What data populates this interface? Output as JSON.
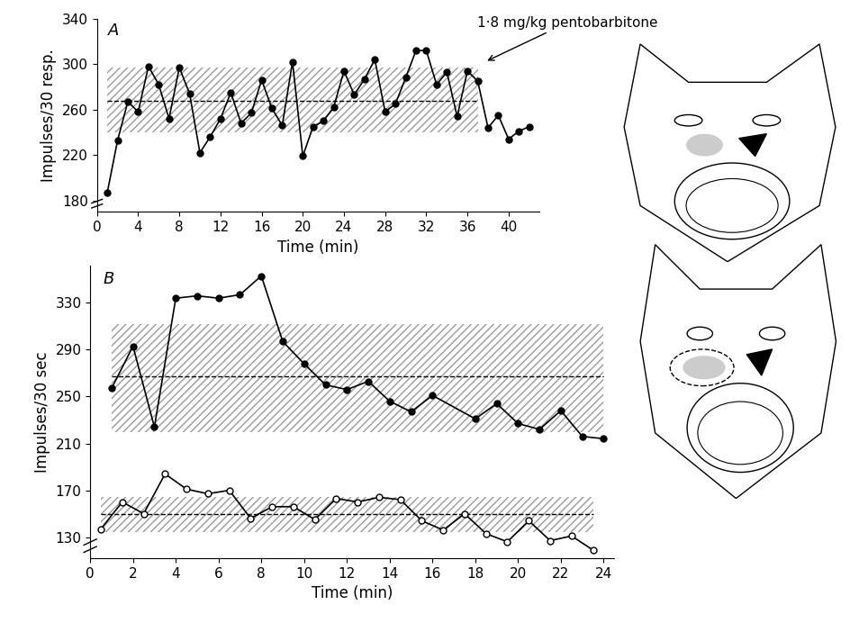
{
  "chart_data": [
    {
      "type": "line",
      "title": "A",
      "x_label": "Time (min)",
      "y_label": "Impulses/30 resp.",
      "xlim": [
        0,
        43
      ],
      "xticks": [
        0,
        4,
        8,
        12,
        16,
        20,
        24,
        28,
        32,
        36,
        40
      ],
      "ylim": [
        170,
        340
      ],
      "yticks": [
        180,
        220,
        260,
        300,
        340
      ],
      "bands": [
        {
          "x": [
            1,
            37
          ],
          "low": 240,
          "high": 297,
          "mean": 268
        }
      ],
      "series": [
        {
          "color": "#000000",
          "marker": "circle",
          "x": [
            1,
            2,
            3,
            4,
            5,
            6,
            7,
            8,
            9,
            10,
            11,
            12,
            13,
            14,
            15,
            16,
            17,
            18,
            19,
            20,
            21,
            22,
            23,
            24,
            25,
            26,
            27,
            28,
            29,
            30,
            31,
            32,
            33,
            34,
            35,
            36,
            37,
            38,
            39,
            40,
            41,
            42
          ],
          "values": [
            187,
            233,
            267,
            258,
            298,
            282,
            252,
            297,
            274,
            222,
            236,
            252,
            275,
            248,
            257,
            286,
            261,
            246,
            302,
            219,
            245,
            250,
            262,
            294,
            273,
            287,
            304,
            258,
            265,
            288,
            312,
            312,
            282,
            293,
            254,
            294,
            285,
            244,
            255,
            234,
            241,
            245
          ]
        }
      ],
      "annotations": [
        {
          "text": "1·8 mg/kg pentobarbitone",
          "x": 37.7,
          "y": 302
        }
      ]
    },
    {
      "type": "line",
      "title": "B",
      "x_label": "Time (min)",
      "y_label": "Impulses/30 sec",
      "xlim": [
        0,
        24.5
      ],
      "xticks": [
        0,
        2,
        4,
        6,
        8,
        10,
        12,
        14,
        16,
        18,
        20,
        22,
        24
      ],
      "ylim": [
        112,
        362
      ],
      "yticks": [
        130,
        170,
        210,
        250,
        290,
        330
      ],
      "bands": [
        {
          "x": [
            1,
            24
          ],
          "low": 220,
          "high": 312,
          "mean": 267
        },
        {
          "x": [
            0.5,
            23.5
          ],
          "low": 134,
          "high": 164,
          "mean": 150
        }
      ],
      "series": [
        {
          "color": "#000000",
          "marker": "circle",
          "x": [
            1,
            2,
            3,
            4,
            5,
            6,
            7,
            8,
            9,
            10,
            11,
            12,
            13,
            14,
            15,
            16,
            18,
            19,
            20,
            21,
            22,
            23,
            24
          ],
          "values": [
            257,
            293,
            224,
            334,
            336,
            334,
            337,
            353,
            297,
            278,
            260,
            256,
            263,
            246,
            237,
            251,
            231,
            244,
            227,
            222,
            238,
            216,
            214
          ]
        },
        {
          "color": "#000000",
          "marker": "open_circle",
          "x": [
            0.5,
            1.5,
            2.5,
            3.5,
            4.5,
            5.5,
            6.5,
            7.5,
            8.5,
            9.5,
            10.5,
            11.5,
            12.5,
            13.5,
            14.5,
            15.5,
            16.5,
            17.5,
            18.5,
            19.5,
            20.5,
            21.5,
            22.5,
            23.5
          ],
          "values": [
            137,
            160,
            150,
            184,
            171,
            167,
            170,
            146,
            156,
            156,
            145,
            163,
            160,
            164,
            162,
            144,
            136,
            150,
            133,
            126,
            144,
            127,
            131,
            119
          ]
        }
      ],
      "annotations": []
    }
  ]
}
